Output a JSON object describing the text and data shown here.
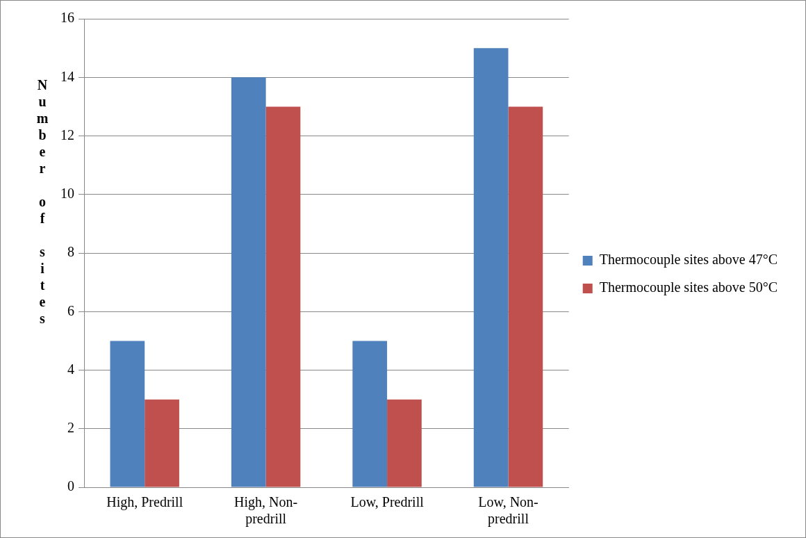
{
  "chart_data": {
    "type": "bar",
    "ylabel": "Number of sites",
    "categories": [
      "High, Predrill",
      "High, Non-predrill",
      "Low, Predrill",
      "Low, Non-predrill"
    ],
    "series": [
      {
        "name": "Thermocouple sites above 47°C",
        "color": "#4f81bd",
        "values": [
          5,
          14,
          5,
          15
        ]
      },
      {
        "name": "Thermocouple sites above 50°C",
        "color": "#c0504d",
        "values": [
          3,
          13,
          3,
          13
        ]
      }
    ],
    "ylim": [
      0,
      16
    ],
    "yticks": [
      0,
      2,
      4,
      6,
      8,
      10,
      12,
      14,
      16
    ],
    "grid": "y",
    "legend": "right"
  }
}
